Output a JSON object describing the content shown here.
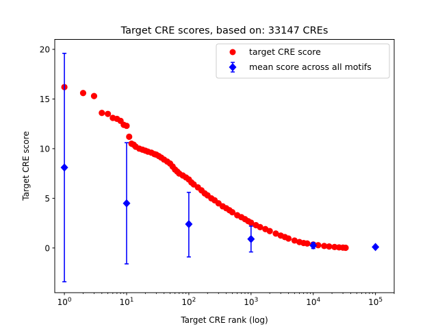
{
  "chart_data": {
    "type": "scatter",
    "title": "Target CRE scores, based on: 33147 CREs",
    "xlabel": "Target CRE rank (log)",
    "ylabel": "Target CRE score",
    "x_scale": "log",
    "xlim": [
      0.7,
      200000
    ],
    "ylim": [
      -4.5,
      21
    ],
    "x_ticks": [
      {
        "value": 1,
        "base": "10",
        "exp": "0"
      },
      {
        "value": 10,
        "base": "10",
        "exp": "1"
      },
      {
        "value": 100,
        "base": "10",
        "exp": "2"
      },
      {
        "value": 1000,
        "base": "10",
        "exp": "3"
      },
      {
        "value": 10000,
        "base": "10",
        "exp": "4"
      },
      {
        "value": 100000,
        "base": "10",
        "exp": "5"
      }
    ],
    "y_ticks": [
      0,
      5,
      10,
      15,
      20
    ],
    "grid": false,
    "legend_position": "top-right",
    "colors": {
      "target": "#ff0000",
      "mean": "#0000ff"
    },
    "series": [
      {
        "name": "target CRE score",
        "marker": "circle",
        "points": [
          [
            1,
            16.2
          ],
          [
            2,
            15.6
          ],
          [
            3,
            15.3
          ],
          [
            4,
            13.6
          ],
          [
            5,
            13.5
          ],
          [
            6,
            13.1
          ],
          [
            7,
            13.0
          ],
          [
            8,
            12.8
          ],
          [
            9,
            12.4
          ],
          [
            10,
            12.3
          ],
          [
            11,
            11.2
          ],
          [
            12,
            10.5
          ],
          [
            13,
            10.4
          ],
          [
            14,
            10.2
          ],
          [
            16,
            10.0
          ],
          [
            18,
            9.9
          ],
          [
            20,
            9.8
          ],
          [
            22,
            9.7
          ],
          [
            25,
            9.6
          ],
          [
            28,
            9.45
          ],
          [
            30,
            9.4
          ],
          [
            33,
            9.25
          ],
          [
            36,
            9.1
          ],
          [
            40,
            8.9
          ],
          [
            45,
            8.7
          ],
          [
            50,
            8.5
          ],
          [
            55,
            8.2
          ],
          [
            60,
            7.9
          ],
          [
            65,
            7.7
          ],
          [
            70,
            7.5
          ],
          [
            80,
            7.3
          ],
          [
            90,
            7.1
          ],
          [
            100,
            6.9
          ],
          [
            110,
            6.6
          ],
          [
            120,
            6.4
          ],
          [
            140,
            6.1
          ],
          [
            160,
            5.8
          ],
          [
            180,
            5.5
          ],
          [
            200,
            5.3
          ],
          [
            230,
            5.0
          ],
          [
            260,
            4.8
          ],
          [
            300,
            4.5
          ],
          [
            350,
            4.2
          ],
          [
            400,
            4.0
          ],
          [
            450,
            3.8
          ],
          [
            500,
            3.6
          ],
          [
            600,
            3.3
          ],
          [
            700,
            3.1
          ],
          [
            800,
            2.9
          ],
          [
            900,
            2.7
          ],
          [
            1000,
            2.55
          ],
          [
            1200,
            2.3
          ],
          [
            1400,
            2.1
          ],
          [
            1700,
            1.9
          ],
          [
            2000,
            1.7
          ],
          [
            2500,
            1.45
          ],
          [
            3000,
            1.25
          ],
          [
            3500,
            1.1
          ],
          [
            4000,
            0.95
          ],
          [
            5000,
            0.75
          ],
          [
            6000,
            0.6
          ],
          [
            7000,
            0.5
          ],
          [
            8000,
            0.45
          ],
          [
            10000,
            0.35
          ],
          [
            12000,
            0.28
          ],
          [
            15000,
            0.2
          ],
          [
            18000,
            0.15
          ],
          [
            22000,
            0.1
          ],
          [
            26000,
            0.06
          ],
          [
            30000,
            0.04
          ],
          [
            33147,
            0.02
          ]
        ]
      },
      {
        "name": "mean score across all motifs",
        "marker": "diamond",
        "points": [
          {
            "x": 1,
            "y": 8.1,
            "lo": -3.4,
            "hi": 19.6
          },
          {
            "x": 10,
            "y": 4.5,
            "lo": -1.6,
            "hi": 10.6
          },
          {
            "x": 100,
            "y": 2.4,
            "lo": -0.9,
            "hi": 5.6
          },
          {
            "x": 1000,
            "y": 0.9,
            "lo": -0.4,
            "hi": 2.2
          },
          {
            "x": 10000,
            "y": 0.25,
            "lo": -0.05,
            "hi": 0.55
          },
          {
            "x": 100000,
            "y": 0.1,
            "lo": 0.1,
            "hi": 0.1
          }
        ]
      }
    ]
  }
}
